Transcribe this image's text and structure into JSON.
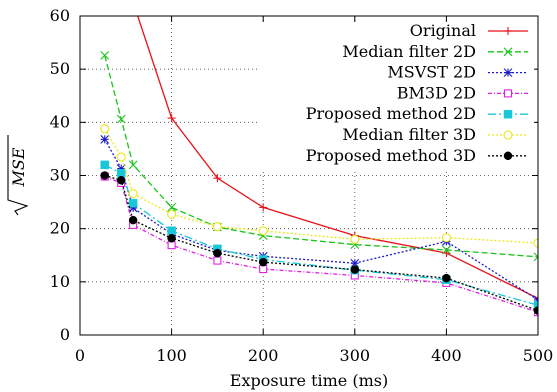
{
  "chart_data": {
    "type": "line",
    "title": "",
    "xlabel": "Exposure time (ms)",
    "ylabel": "√MSE",
    "ylabel_radicand": "MSE",
    "xlim": [
      0,
      500
    ],
    "ylim": [
      0,
      60
    ],
    "xticks": [
      0,
      100,
      200,
      300,
      400,
      500
    ],
    "yticks": [
      0,
      10,
      20,
      30,
      40,
      50,
      60
    ],
    "grid": true,
    "legend_position": "top-right",
    "x": [
      27,
      45,
      58,
      100,
      150,
      200,
      300,
      400,
      500
    ],
    "series": [
      {
        "name": "Original",
        "color": "#e8121a",
        "dash": "solid",
        "marker": "plus",
        "values": [
          null,
          null,
          null,
          40.8,
          29.5,
          24.0,
          18.7,
          15.4,
          6.9
        ]
      },
      {
        "name": "Median filter 2D",
        "color": "#18c418",
        "dash": "dashed",
        "marker": "cross",
        "values": [
          52.6,
          40.6,
          32.0,
          24.0,
          20.3,
          18.7,
          17.0,
          16.0,
          14.7
        ]
      },
      {
        "name": "MSVST 2D",
        "color": "#1a1acc",
        "dash": "dotted",
        "marker": "star",
        "values": [
          36.8,
          31.3,
          23.9,
          19.0,
          15.9,
          14.8,
          13.5,
          17.6,
          6.6
        ]
      },
      {
        "name": "BM3D 2D",
        "color": "#e020e0",
        "dash": "dashdot",
        "marker": "square-open",
        "values": [
          29.8,
          28.6,
          20.7,
          16.9,
          14.0,
          12.4,
          11.2,
          9.8,
          4.3
        ]
      },
      {
        "name": "Proposed method 2D",
        "color": "#18c8d8",
        "dash": "longdash",
        "marker": "square-filled",
        "values": [
          32.0,
          30.4,
          24.8,
          19.6,
          16.2,
          14.2,
          12.2,
          10.4,
          5.6
        ]
      },
      {
        "name": "Median filter 3D",
        "color": "#e8e818",
        "dash": "dotted",
        "marker": "circle-open",
        "values": [
          38.8,
          33.5,
          26.6,
          22.7,
          20.4,
          19.6,
          18.0,
          18.3,
          17.3
        ]
      },
      {
        "name": "Proposed method 3D",
        "color": "#000000",
        "dash": "dotted",
        "marker": "circle-filled",
        "values": [
          30.0,
          29.1,
          21.6,
          18.2,
          15.4,
          13.7,
          12.3,
          10.7,
          4.6
        ]
      }
    ]
  }
}
